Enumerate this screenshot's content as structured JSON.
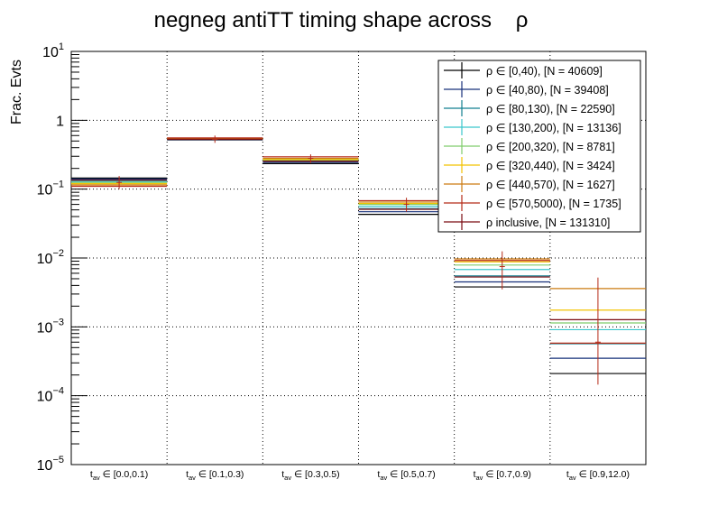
{
  "chart_data": {
    "type": "step-histogram",
    "title": "negneg antiTT timing shape across",
    "title_symbol": "ρ",
    "ylabel": "Frac. Evts",
    "yscale": "log",
    "ylim": [
      1e-05,
      10
    ],
    "y_ticks": [
      {
        "base": "10",
        "exp": "1"
      },
      {
        "base": "1",
        "exp": ""
      },
      {
        "base": "10",
        "exp": "−1"
      },
      {
        "base": "10",
        "exp": "−2"
      },
      {
        "base": "10",
        "exp": "−3"
      },
      {
        "base": "10",
        "exp": "−4"
      },
      {
        "base": "10",
        "exp": "−5"
      }
    ],
    "categories": [
      {
        "main": "t",
        "sub": "av",
        "rest": " ∈ [0.0,0.1)"
      },
      {
        "main": "t",
        "sub": "av",
        "rest": " ∈ [0.1,0.3)"
      },
      {
        "main": "t",
        "sub": "av",
        "rest": " ∈ [0.3,0.5)"
      },
      {
        "main": "t",
        "sub": "av",
        "rest": " ∈ [0.5,0.7)"
      },
      {
        "main": "t",
        "sub": "av",
        "rest": " ∈ [0.7,0.9)"
      },
      {
        "main": "t",
        "sub": "av",
        "rest": " ∈ [0.9,12.0)"
      }
    ],
    "series": [
      {
        "name": "ρ ∈ [0,40), [N = 40609]",
        "color": "#000000",
        "values": [
          0.145,
          0.52,
          0.235,
          0.043,
          0.0038,
          0.00021
        ]
      },
      {
        "name": "ρ ∈ [40,80), [N = 39408]",
        "color": "#17307a",
        "values": [
          0.14,
          0.525,
          0.245,
          0.047,
          0.0045,
          0.00035
        ]
      },
      {
        "name": "ρ ∈ [80,130), [N = 22590]",
        "color": "#127f90",
        "values": [
          0.135,
          0.53,
          0.255,
          0.052,
          0.0055,
          0.00057
        ]
      },
      {
        "name": "ρ ∈ [130,200), [N = 13136]",
        "color": "#3ac6cc",
        "values": [
          0.13,
          0.535,
          0.26,
          0.056,
          0.0068,
          0.00091
        ]
      },
      {
        "name": "ρ ∈ [200,320), [N = 8781]",
        "color": "#7fcc6c",
        "values": [
          0.125,
          0.54,
          0.265,
          0.06,
          0.0079,
          0.00114
        ]
      },
      {
        "name": "ρ ∈ [320,440), [N = 3424]",
        "color": "#f2c200",
        "values": [
          0.12,
          0.545,
          0.27,
          0.062,
          0.0088,
          0.00175
        ]
      },
      {
        "name": "ρ ∈ [440,570), [N = 1627]",
        "color": "#cc7b10",
        "values": [
          0.115,
          0.55,
          0.28,
          0.065,
          0.0097,
          0.0036
        ]
      },
      {
        "name": "ρ ∈ [570,5000), [N = 1735]",
        "color": "#b52a18",
        "values": [
          0.11,
          0.555,
          0.295,
          0.068,
          0.0092,
          0.00058
        ]
      },
      {
        "name": "ρ inclusive, [N = 131310]",
        "color": "#7a0a10",
        "values": [
          0.135,
          0.53,
          0.255,
          0.051,
          0.0053,
          0.00127
        ]
      }
    ],
    "error_bars": {
      "color": "#b52a18",
      "values": [
        0.125,
        0.53,
        0.28,
        0.06,
        0.0075,
        0.0006
      ],
      "lower": [
        0.1,
        0.47,
        0.24,
        0.047,
        0.0035,
        0.000145
      ],
      "upper": [
        0.155,
        0.6,
        0.32,
        0.075,
        0.0125,
        0.0052
      ]
    },
    "legend_position": "top-right",
    "grid": true
  }
}
